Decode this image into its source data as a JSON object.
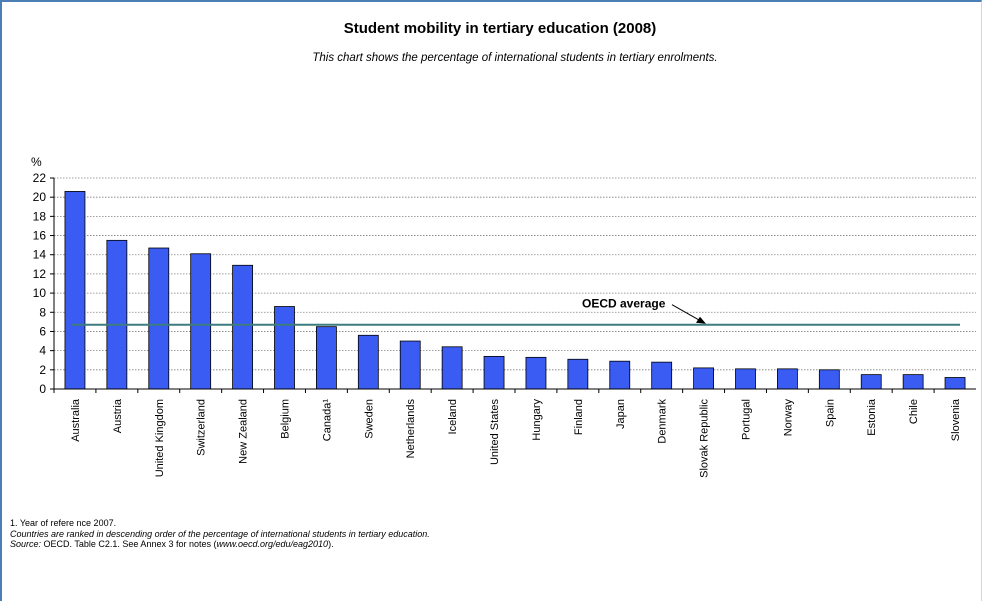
{
  "title": "Student mobility in tertiary education (2008)",
  "subtitle": "This chart shows the percentage of international students in tertiary enrolments.",
  "notes": {
    "footnote": "1. Year of refere nce 2007.",
    "ranking": "Countries are ranked in descending order of the percentage of international students in tertiary education.",
    "source_label": "Source:",
    "source_text": "OECD. Table C2.1. See Annex 3 for notes (",
    "source_url": "www.oecd.org/edu/eag2010",
    "source_end": ")."
  },
  "colors": {
    "bar": "#3b5cf2",
    "bar_stroke": "#000000",
    "average_line": "#3d7d7f",
    "grid": "#7f7f7f",
    "frame": "#4a7eb5"
  },
  "chart_data": {
    "type": "bar",
    "ylabel": "%",
    "ylim": [
      0,
      22
    ],
    "yticks": [
      0,
      2,
      4,
      6,
      8,
      10,
      12,
      14,
      16,
      18,
      20,
      22
    ],
    "grid": true,
    "categories": [
      "Australia",
      "Austria",
      "United Kingdom",
      "Switzerland",
      "New Zealand",
      "Belgium",
      "Canada¹",
      "Sweden",
      "Netherlands",
      "Iceland",
      "United States",
      "Hungary",
      "Finland",
      "Japan",
      "Denmark",
      "Slovak Republic",
      "Portugal",
      "Norway",
      "Spain",
      "Estonia",
      "Chile",
      "Slovenia"
    ],
    "values": [
      20.6,
      15.5,
      14.7,
      14.1,
      12.9,
      8.6,
      6.5,
      5.6,
      5.0,
      4.4,
      3.4,
      3.3,
      3.1,
      2.9,
      2.8,
      2.2,
      2.1,
      2.1,
      2.0,
      1.5,
      1.5,
      1.2
    ],
    "reference_line": {
      "label": "OECD average",
      "value": 6.7
    }
  }
}
